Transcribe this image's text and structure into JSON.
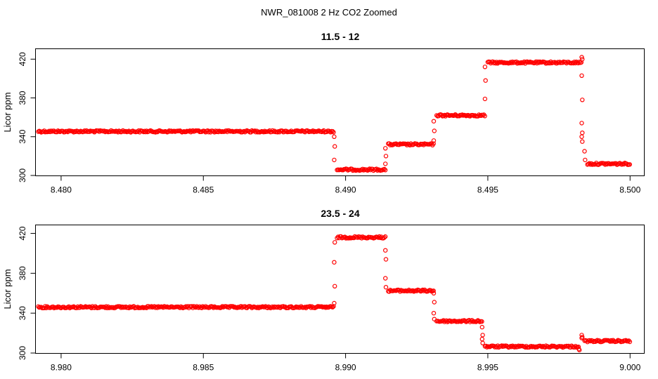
{
  "figure": {
    "suptitle": "NWR_081008  2 Hz CO2 Zoomed"
  },
  "colors": {
    "points": "#ff0000",
    "axes": "#000000",
    "background": "#ffffff"
  },
  "chart_data": [
    {
      "type": "scatter",
      "title": "11.5 - 12",
      "xlabel": "",
      "ylabel": "Licor ppm",
      "xlim": [
        8.4791,
        8.5005
      ],
      "ylim": [
        300,
        426
      ],
      "x_ticks": [
        8.48,
        8.485,
        8.49,
        8.495,
        8.5
      ],
      "x_tick_labels": [
        "8.480",
        "8.485",
        "8.490",
        "8.495",
        "8.500"
      ],
      "y_ticks": [
        300,
        340,
        380,
        420
      ],
      "y_tick_labels": [
        "300",
        "340",
        "380",
        "420"
      ],
      "marker": "open-circle",
      "grid": false,
      "segments": [
        {
          "x_start": 8.4792,
          "x_end": 8.4896,
          "y": 345.5
        },
        {
          "x_start": 8.4897,
          "x_end": 8.4914,
          "y": 306.0
        },
        {
          "x_start": 8.4915,
          "x_end": 8.4931,
          "y": 332.0
        },
        {
          "x_start": 8.4932,
          "x_end": 8.4949,
          "y": 362.0
        },
        {
          "x_start": 8.495,
          "x_end": 8.4983,
          "y": 416.5
        },
        {
          "x_start": 8.4985,
          "x_end": 8.5,
          "y": 312.0
        }
      ],
      "transitions": [
        {
          "x": 8.4896,
          "y": [
            340,
            330,
            316
          ]
        },
        {
          "x": 8.4914,
          "y": [
            312,
            320,
            328
          ]
        },
        {
          "x": 8.4931,
          "y": [
            336,
            346,
            356
          ]
        },
        {
          "x": 8.4949,
          "y": [
            379,
            398,
            412
          ]
        },
        {
          "x": 8.4983,
          "y": [
            422,
            420,
            403,
            378,
            354,
            344,
            340,
            335
          ]
        },
        {
          "x": 8.4984,
          "y": [
            325,
            316
          ]
        }
      ]
    },
    {
      "type": "scatter",
      "title": "23.5 - 24",
      "xlabel": "",
      "ylabel": "Licor ppm",
      "xlim": [
        8.9791,
        9.0005
      ],
      "ylim": [
        300,
        426
      ],
      "x_ticks": [
        8.98,
        8.985,
        8.99,
        8.995,
        9.0
      ],
      "x_tick_labels": [
        "8.980",
        "8.985",
        "8.990",
        "8.995",
        "9.000"
      ],
      "y_ticks": [
        300,
        340,
        380,
        420
      ],
      "y_tick_labels": [
        "300",
        "340",
        "380",
        "420"
      ],
      "marker": "open-circle",
      "grid": false,
      "segments": [
        {
          "x_start": 8.9792,
          "x_end": 8.9896,
          "y": 346.0
        },
        {
          "x_start": 8.9897,
          "x_end": 8.9914,
          "y": 416.0
        },
        {
          "x_start": 8.9915,
          "x_end": 8.9931,
          "y": 362.5
        },
        {
          "x_start": 8.9932,
          "x_end": 8.9948,
          "y": 332.0
        },
        {
          "x_start": 8.9949,
          "x_end": 8.9982,
          "y": 306.5
        },
        {
          "x_start": 8.9984,
          "x_end": 9.0,
          "y": 312.0
        }
      ],
      "transitions": [
        {
          "x": 8.9896,
          "y": [
            350,
            367,
            391,
            411
          ]
        },
        {
          "x": 8.9914,
          "y": [
            403,
            394,
            375,
            366
          ]
        },
        {
          "x": 8.9931,
          "y": [
            360,
            351,
            340,
            334
          ]
        },
        {
          "x": 8.9948,
          "y": [
            326,
            318,
            314,
            310
          ]
        },
        {
          "x": 8.9982,
          "y": [
            304,
            303
          ]
        },
        {
          "x": 8.9983,
          "y": [
            318,
            316,
            315
          ]
        }
      ]
    }
  ]
}
